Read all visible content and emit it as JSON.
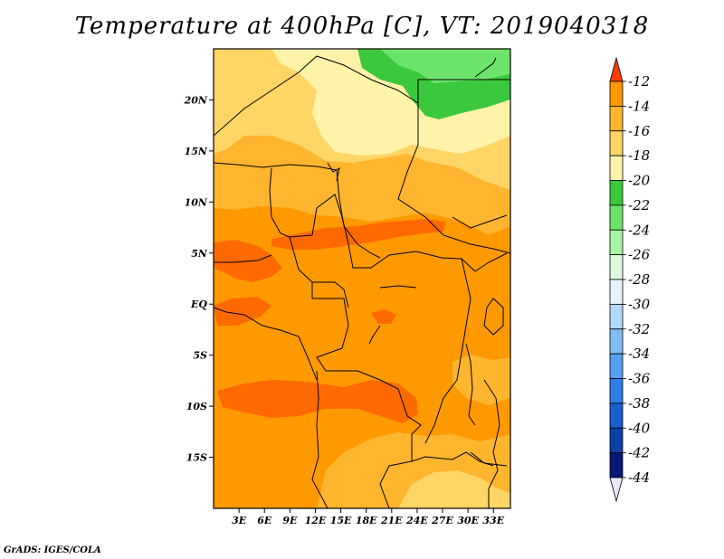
{
  "title": "Temperature at 400hPa [C], VT: 2019040318",
  "credit": "GrADS: IGES/COLA",
  "map": {
    "lon_range": [
      0,
      35
    ],
    "lat_range": [
      -20,
      25
    ],
    "lat_ticks": [
      {
        "value": 20,
        "label": "20N"
      },
      {
        "value": 15,
        "label": "15N"
      },
      {
        "value": 10,
        "label": "10N"
      },
      {
        "value": 5,
        "label": "5N"
      },
      {
        "value": 0,
        "label": "EQ"
      },
      {
        "value": -5,
        "label": "5S"
      },
      {
        "value": -10,
        "label": "10S"
      },
      {
        "value": -15,
        "label": "15S"
      }
    ],
    "lon_ticks": [
      {
        "value": 3,
        "label": "3E"
      },
      {
        "value": 6,
        "label": "6E"
      },
      {
        "value": 9,
        "label": "9E"
      },
      {
        "value": 12,
        "label": "12E"
      },
      {
        "value": 15,
        "label": "15E"
      },
      {
        "value": 18,
        "label": "18E"
      },
      {
        "value": 21,
        "label": "21E"
      },
      {
        "value": 24,
        "label": "24E"
      },
      {
        "value": 27,
        "label": "27E"
      },
      {
        "value": 30,
        "label": "30E"
      },
      {
        "value": 33,
        "label": "33E"
      }
    ]
  },
  "colorbar": {
    "bins": [
      {
        "label": "-12",
        "color": "#ff6a00"
      },
      {
        "label": "-14",
        "color": "#ff9900"
      },
      {
        "label": "-16",
        "color": "#ffb52d"
      },
      {
        "label": "-18",
        "color": "#ffd566"
      },
      {
        "label": "-20",
        "color": "#fff3aa"
      },
      {
        "label": "-22",
        "color": "#3cc83c"
      },
      {
        "label": "-24",
        "color": "#6ce46c"
      },
      {
        "label": "-26",
        "color": "#a6f5a6"
      },
      {
        "label": "-28",
        "color": "#ddf8dd"
      },
      {
        "label": "-30",
        "color": "#e6f4ff"
      },
      {
        "label": "-32",
        "color": "#b4d8fa"
      },
      {
        "label": "-34",
        "color": "#82bcf5"
      },
      {
        "label": "-36",
        "color": "#55a0f0"
      },
      {
        "label": "-38",
        "color": "#2d7fe6"
      },
      {
        "label": "-40",
        "color": "#1a5fd0"
      },
      {
        "label": "-42",
        "color": "#0d3fa8"
      },
      {
        "label": "-44",
        "color": "#06187a"
      }
    ],
    "top_arrow_color": "#ff3c00",
    "bottom_arrow_color": "#e8e8ff"
  },
  "colors": {
    "level_12": "#ff6a00",
    "level_14": "#ff9900",
    "level_16": "#ffb52d",
    "level_18": "#ffd566",
    "level_20": "#fff3aa",
    "level_22": "#3cc83c",
    "level_24": "#6ce46c"
  }
}
